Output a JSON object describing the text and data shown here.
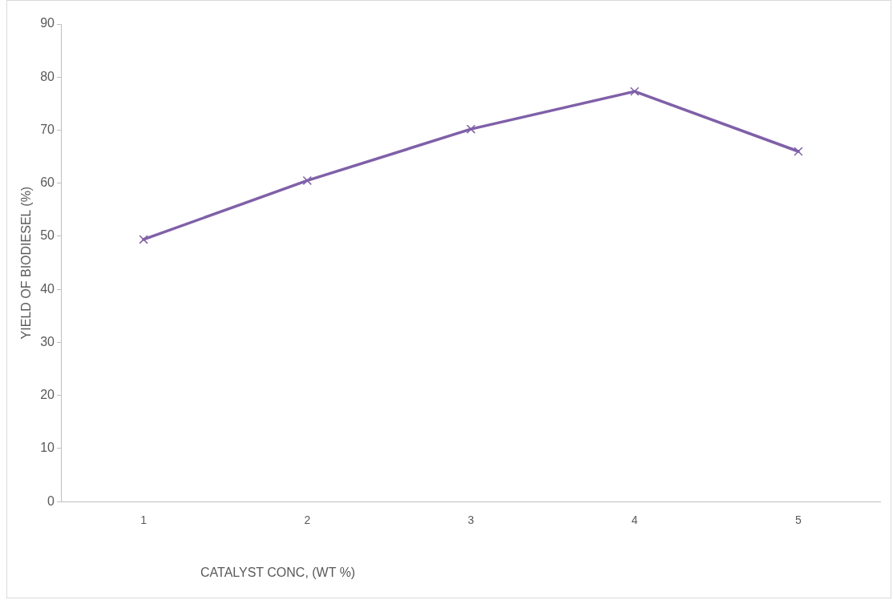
{
  "chart_data": {
    "type": "line",
    "xlabel": "CATALYST CONC, (WT %)",
    "ylabel": "YIELD OF BIODIESEL (%)",
    "categories": [
      "1",
      "2",
      "3",
      "4",
      "5"
    ],
    "series": [
      {
        "color": "#7f60a8",
        "values": [
          49.4,
          60.5,
          70.2,
          77.3,
          66.0
        ]
      }
    ],
    "ylim": [
      0,
      90
    ],
    "yticks": [
      0,
      10,
      20,
      30,
      40,
      50,
      60,
      70,
      80,
      90
    ],
    "grid": false,
    "legend": false,
    "marker": "cross",
    "line_style": "solid"
  }
}
